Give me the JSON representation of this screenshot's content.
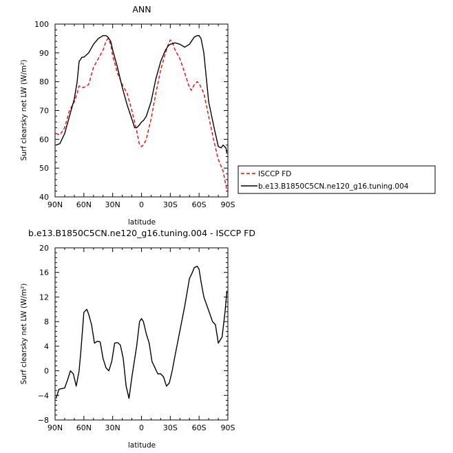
{
  "colors": {
    "model": "#000000",
    "obs": "#ff0000",
    "diff": "#000000"
  },
  "chart_data": [
    {
      "type": "line",
      "title": "ANN",
      "xlabel": "latitude",
      "ylabel": "Surf clearsky net LW (W/m²)",
      "x_tick_labels": [
        "90N",
        "60N",
        "30N",
        "0",
        "30S",
        "60S",
        "90S"
      ],
      "x_tick_values": [
        90,
        60,
        30,
        0,
        -30,
        -60,
        -90
      ],
      "xlim": [
        90,
        -90
      ],
      "ylim": [
        40,
        100
      ],
      "y_ticks": [
        40,
        50,
        60,
        70,
        80,
        90,
        100
      ],
      "legend_position": "bottom-right outside",
      "series": [
        {
          "name": "ISCCP FD",
          "style": "dashed",
          "x": [
            89,
            85,
            80,
            75,
            70,
            67,
            65,
            62,
            60,
            55,
            50,
            45,
            40,
            37,
            35,
            32,
            30,
            25,
            20,
            15,
            10,
            5,
            2,
            0,
            -2,
            -5,
            -10,
            -15,
            -20,
            -25,
            -28,
            -30,
            -32,
            -35,
            -40,
            -45,
            -50,
            -52,
            -55,
            -58,
            -60,
            -62,
            -65,
            -70,
            -75,
            -80,
            -85,
            -88,
            -89
          ],
          "y": [
            62,
            61.5,
            64,
            70,
            73,
            76,
            78.5,
            78,
            78,
            79,
            85,
            88,
            91,
            94,
            95,
            93,
            89,
            83,
            79,
            76,
            70,
            63,
            58,
            57.5,
            58,
            60,
            67,
            76,
            84,
            90,
            93,
            94.5,
            94,
            91,
            88,
            83,
            78,
            77,
            79,
            80,
            79.5,
            78,
            76,
            68,
            60,
            53,
            49,
            44,
            42
          ]
        },
        {
          "name": "b.e13.B1850C5CN.ne120_g16.tuning.004",
          "style": "solid",
          "x": [
            89,
            85,
            80,
            75,
            70,
            67,
            65,
            62,
            60,
            55,
            50,
            45,
            40,
            37,
            35,
            32,
            30,
            25,
            20,
            15,
            10,
            7,
            5,
            2,
            0,
            -2,
            -5,
            -10,
            -15,
            -20,
            -25,
            -28,
            -30,
            -35,
            -40,
            -45,
            -50,
            -55,
            -58,
            -60,
            -62,
            -65,
            -70,
            -75,
            -80,
            -83,
            -85,
            -88,
            -89
          ],
          "y": [
            58,
            58.5,
            62,
            68,
            74,
            80,
            87,
            88.5,
            88.5,
            90,
            93,
            95,
            96,
            96,
            95.5,
            94,
            91,
            85,
            78,
            72,
            67,
            64,
            64,
            65,
            66,
            66.5,
            68,
            73,
            81,
            87,
            91,
            92.5,
            93,
            93.5,
            93,
            92,
            93,
            95.5,
            96,
            96,
            95,
            90,
            73,
            65,
            57.5,
            57,
            58,
            57,
            55
          ]
        }
      ]
    },
    {
      "type": "line",
      "title": "b.e13.B1850C5CN.ne120_g16.tuning.004 - ISCCP FD",
      "xlabel": "latitude",
      "ylabel": "Surf clearsky net LW (W/m²)",
      "x_tick_labels": [
        "90N",
        "60N",
        "30N",
        "0",
        "30S",
        "60S",
        "90S"
      ],
      "x_tick_values": [
        90,
        60,
        30,
        0,
        -30,
        -60,
        -90
      ],
      "xlim": [
        90,
        -90
      ],
      "ylim": [
        -8,
        20
      ],
      "y_ticks": [
        -8,
        -4,
        0,
        4,
        8,
        12,
        16,
        20
      ],
      "series": [
        {
          "style": "solid",
          "x": [
            89,
            86,
            80,
            77,
            74,
            71,
            68,
            65,
            63,
            60,
            57,
            55,
            52,
            49,
            46,
            43,
            40,
            37,
            34,
            31,
            28,
            25,
            22,
            19,
            16,
            13,
            10,
            5,
            2,
            0,
            -2,
            -5,
            -8,
            -11,
            -14,
            -17,
            -20,
            -23,
            -26,
            -29,
            -32,
            -35,
            -40,
            -45,
            -50,
            -53,
            -55,
            -58,
            -60,
            -62,
            -65,
            -70,
            -74,
            -77,
            -80,
            -84,
            -87,
            -89
          ],
          "y": [
            -4.5,
            -3,
            -2.8,
            -1.5,
            0,
            -0.5,
            -2.5,
            0,
            3.5,
            9.5,
            10,
            9.2,
            7.5,
            4.5,
            4.8,
            4.7,
            2,
            0.5,
            0,
            1.5,
            4.5,
            4.6,
            4.2,
            2,
            -2.5,
            -4.5,
            -1,
            4,
            8,
            8.5,
            8,
            6,
            4.5,
            1.5,
            0.5,
            -0.5,
            -0.5,
            -1,
            -2.5,
            -2,
            0,
            2.5,
            6.5,
            10.5,
            15,
            16,
            16.8,
            17,
            16.5,
            14.5,
            12,
            9.8,
            8,
            7.5,
            4.5,
            5.5,
            9.5,
            13
          ]
        }
      ]
    }
  ]
}
